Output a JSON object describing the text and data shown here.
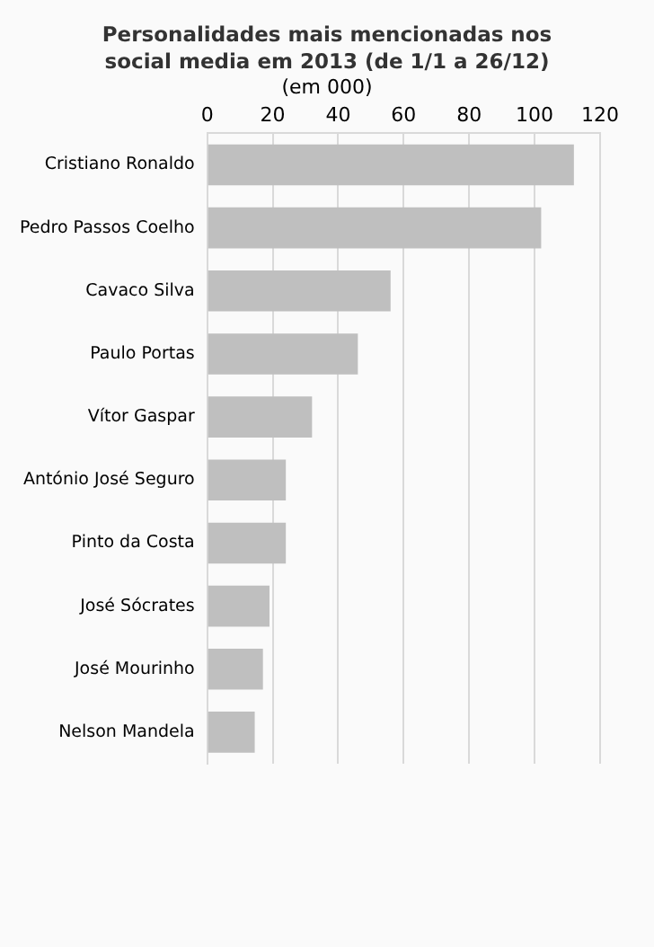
{
  "chart_data": {
    "type": "bar",
    "orientation": "horizontal",
    "title": "Personalidades mais mencionadas nos social media em 2013 (de 1/1 a 26/12)",
    "subtitle": "(em 000)",
    "categories": [
      "Cristiano Ronaldo",
      "Pedro Passos Coelho",
      "Cavaco Silva",
      "Paulo Portas",
      "Vítor Gaspar",
      "António José Seguro",
      "Pinto da Costa",
      "José Sócrates",
      "José Mourinho",
      "Nelson Mandela"
    ],
    "values": [
      112,
      102,
      56,
      46,
      32,
      24,
      24,
      19,
      17,
      14.5
    ],
    "color": "#bfbfbf",
    "xlim": [
      0,
      120
    ],
    "xticks": [
      0,
      20,
      40,
      60,
      80,
      100,
      120
    ],
    "grid": "x"
  }
}
